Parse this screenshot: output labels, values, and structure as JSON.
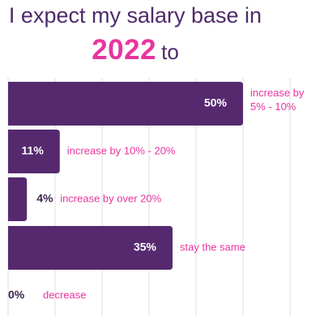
{
  "header": {
    "line1": "I expect my salary base in",
    "year": "2022",
    "line2_suffix": "to"
  },
  "colors": {
    "bar": "#56296f",
    "bar_label": "#ffffff",
    "category_text": "#e8359e",
    "outside_value": "#3a2550",
    "grid": "#dcdcdc",
    "title": "#4e2a6b",
    "year": "#e8359e"
  },
  "chart_data": {
    "type": "bar",
    "orientation": "horizontal",
    "title": "I expect my salary base in 2022 to",
    "categories": [
      "increase by 5% - 10%",
      "increase by 10% - 20%",
      "increase by over 20%",
      "stay the same",
      "decrease"
    ],
    "category_lines": [
      [
        "increase by",
        "5% - 10%"
      ],
      [
        "increase by 10% - 20%"
      ],
      [
        "increase by over 20%"
      ],
      [
        "stay the same"
      ],
      [
        "decrease"
      ]
    ],
    "values": [
      50,
      11,
      4,
      35,
      0
    ],
    "value_labels": [
      "50%",
      "11%",
      "4%",
      "35%",
      "0%"
    ],
    "unit": "%",
    "xlim": [
      0,
      60
    ],
    "grid": true,
    "legend": "none"
  }
}
